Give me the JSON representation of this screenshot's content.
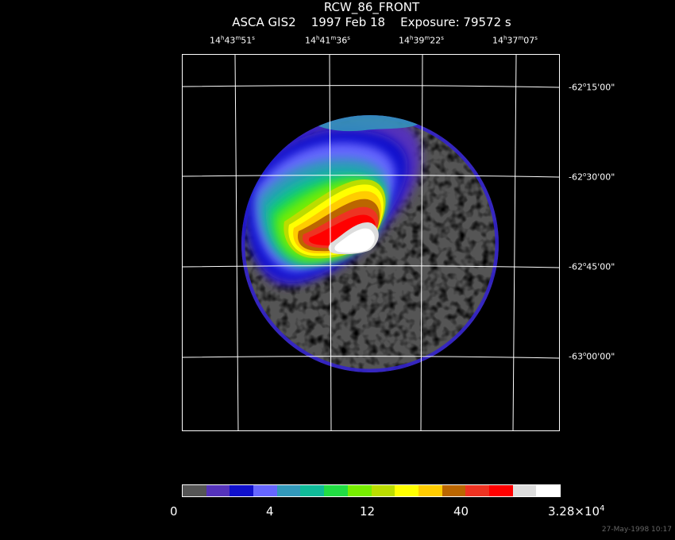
{
  "title": "RCW_86_FRONT",
  "subtitle": "ASCA GIS2    1997 Feb 18    Exposure: 79572 s",
  "ra_labels": [
    {
      "h": "14",
      "m": "43",
      "s": "51"
    },
    {
      "h": "14",
      "m": "41",
      "s": "36"
    },
    {
      "h": "14",
      "m": "39",
      "s": "22"
    },
    {
      "h": "14",
      "m": "37",
      "s": "07"
    }
  ],
  "dec_labels": [
    {
      "d": "-62",
      "m": "15",
      "s": "00"
    },
    {
      "d": "-62",
      "m": "30",
      "s": "00"
    },
    {
      "d": "-62",
      "m": "45",
      "s": "00"
    },
    {
      "d": "-63",
      "m": "00",
      "s": "00"
    }
  ],
  "colorbar": {
    "colors": [
      "#555555",
      "#5533bb",
      "#1010cc",
      "#6666ff",
      "#3399bb",
      "#10bb99",
      "#22dd44",
      "#77ee00",
      "#bbdd00",
      "#ffff00",
      "#ffcc00",
      "#bb6600",
      "#ee3322",
      "#ff0000",
      "#dddddd",
      "#ffffff"
    ],
    "labels": [
      "0",
      "4",
      "12",
      "40"
    ],
    "max_label_base": "3.28×10",
    "max_label_exp": "4"
  },
  "timestamp": "27-May-1998 10:17"
}
